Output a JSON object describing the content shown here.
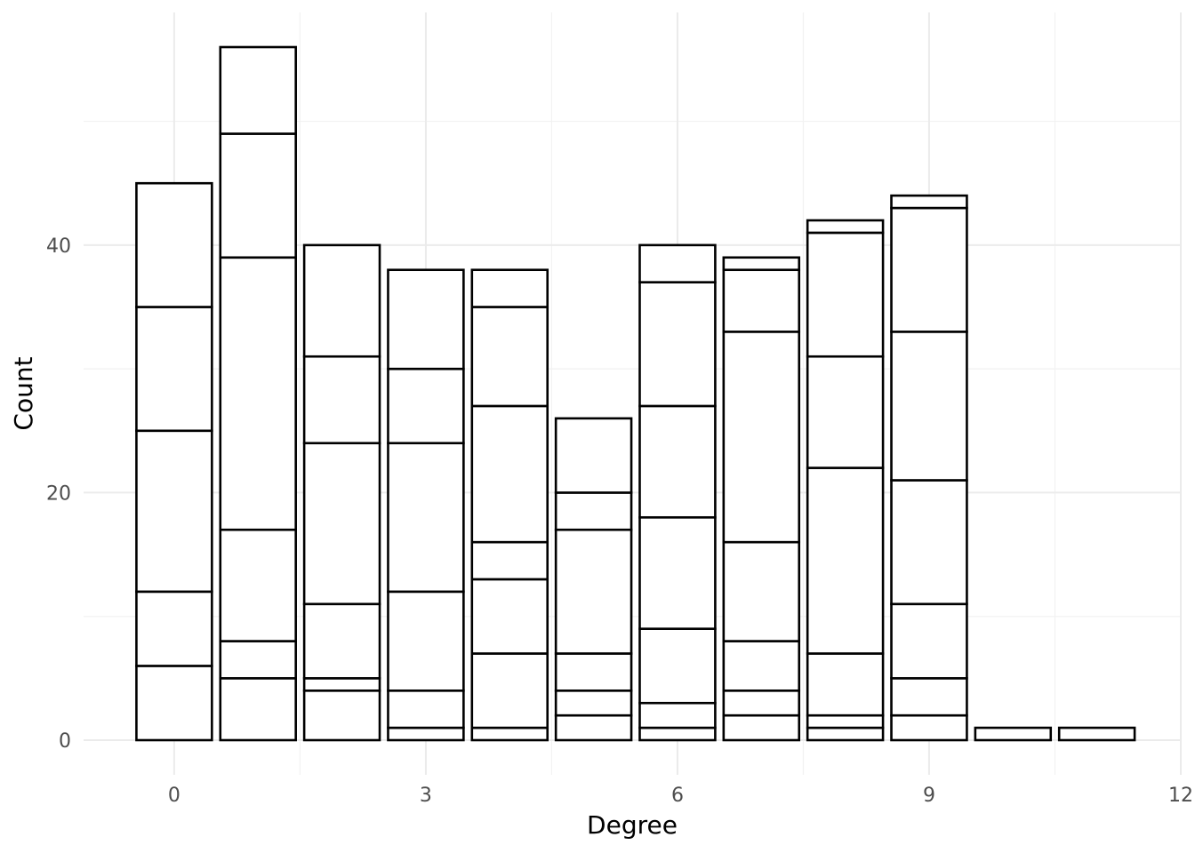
{
  "chart_data": {
    "type": "bar",
    "stacked": true,
    "xlabel": "Degree",
    "ylabel": "Count",
    "xlim": [
      -1.08,
      12
    ],
    "ylim": [
      -2.8,
      58.8
    ],
    "x_ticks": [
      0,
      3,
      6,
      9,
      12
    ],
    "y_ticks": [
      0,
      20,
      40
    ],
    "grid": true,
    "bars": [
      {
        "x": 0,
        "segments": [
          6,
          6,
          13,
          10,
          10
        ]
      },
      {
        "x": 1,
        "segments": [
          5,
          3,
          9,
          22,
          10,
          7
        ]
      },
      {
        "x": 2,
        "segments": [
          4,
          1,
          6,
          13,
          7,
          9
        ]
      },
      {
        "x": 3,
        "segments": [
          1,
          3,
          8,
          12,
          6,
          8
        ]
      },
      {
        "x": 4,
        "segments": [
          1,
          6,
          6,
          3,
          11,
          8,
          3
        ]
      },
      {
        "x": 5,
        "segments": [
          2,
          2,
          3,
          10,
          3,
          6
        ]
      },
      {
        "x": 6,
        "segments": [
          1,
          2,
          6,
          9,
          9,
          10,
          3
        ]
      },
      {
        "x": 7,
        "segments": [
          2,
          2,
          4,
          8,
          17,
          5,
          1
        ]
      },
      {
        "x": 8,
        "segments": [
          1,
          1,
          5,
          15,
          9,
          10,
          1
        ]
      },
      {
        "x": 9,
        "segments": [
          2,
          3,
          6,
          10,
          12,
          10,
          1
        ]
      },
      {
        "x": 10,
        "segments": [
          1
        ]
      },
      {
        "x": 11,
        "segments": [
          1
        ]
      }
    ]
  }
}
